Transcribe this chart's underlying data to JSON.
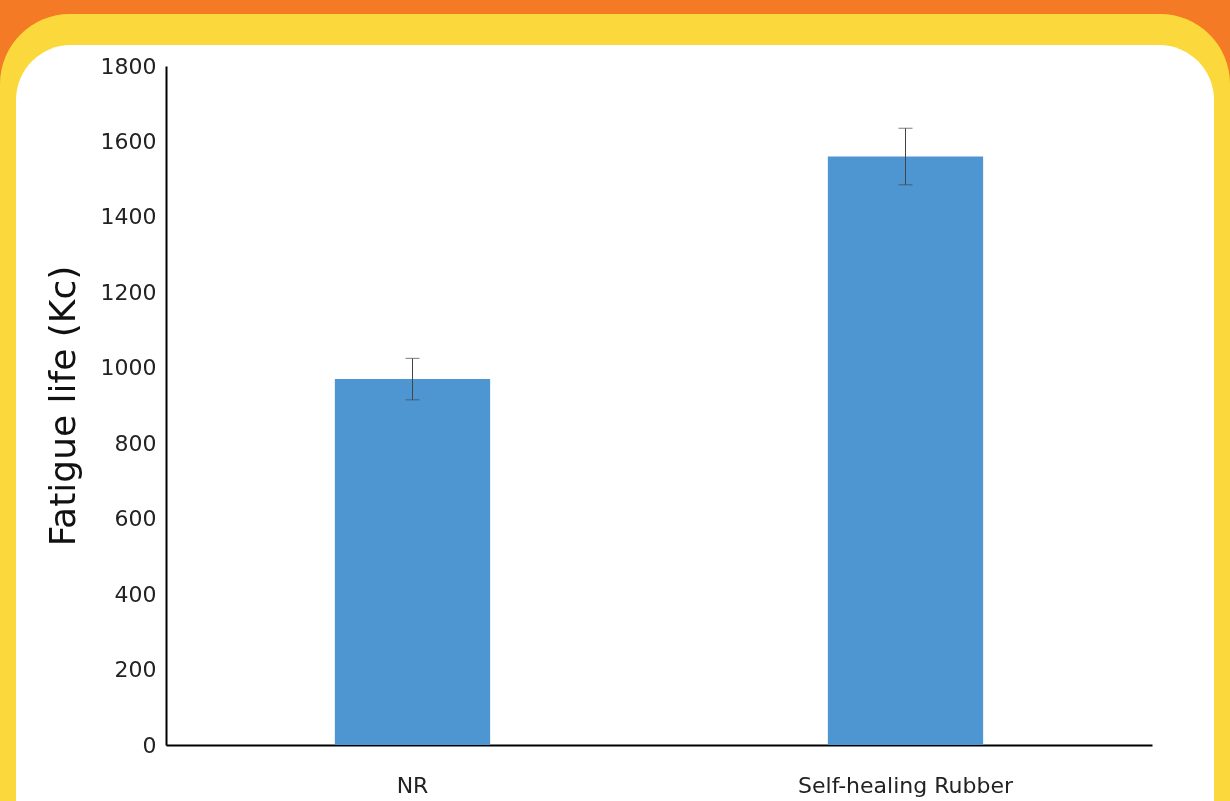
{
  "chart_data": {
    "type": "bar",
    "ylabel": "Fatigue life (Kc)",
    "categories": [
      "NR",
      "Self-healing Rubber"
    ],
    "values": [
      970,
      1560
    ],
    "errors": [
      55,
      75
    ],
    "color": "#4e96d2",
    "ylim": [
      0,
      1800
    ],
    "yticks": [
      0,
      200,
      400,
      600,
      800,
      1000,
      1200,
      1400,
      1600,
      1800
    ],
    "grid": false
  }
}
